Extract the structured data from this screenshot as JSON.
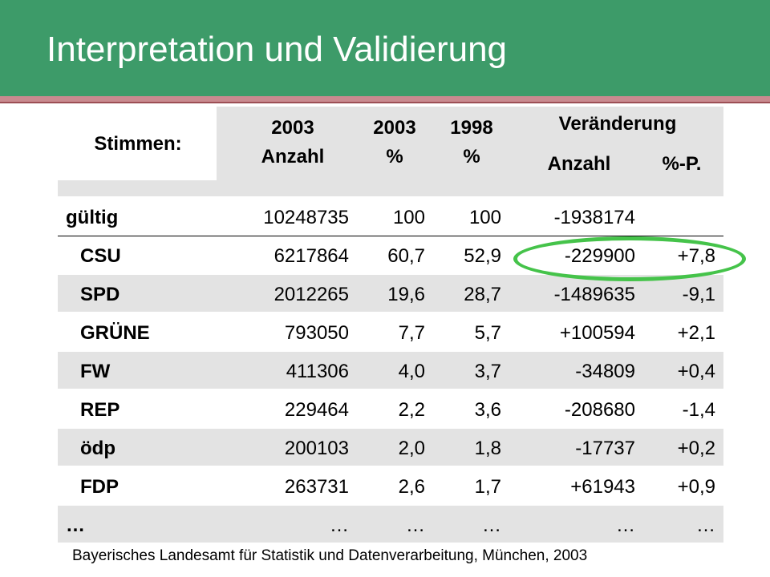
{
  "title": "Interpretation und Validierung",
  "colors": {
    "title_bar": "#3d9b69",
    "stripe": "#e3e3e3",
    "highlight": "#45c34a"
  },
  "table": {
    "header": {
      "stimmen": "Stimmen:",
      "col_2003_anzahl": [
        "2003",
        "Anzahl"
      ],
      "col_2003_pct": [
        "2003",
        "%"
      ],
      "col_1998_pct": [
        "1998",
        "%"
      ],
      "veraenderung": "Veränderung",
      "veraenderung_anzahl": "Anzahl",
      "veraenderung_pp": "%-P."
    },
    "rows": [
      {
        "label": "gültig",
        "anzahl_2003": "10248735",
        "pct_2003": "100",
        "pct_1998": "100",
        "diff_anzahl": "-1938174",
        "diff_pp": ""
      },
      {
        "label": "CSU",
        "anzahl_2003": "6217864",
        "pct_2003": "60,7",
        "pct_1998": "52,9",
        "diff_anzahl": "-229900",
        "diff_pp": "+7,8"
      },
      {
        "label": "SPD",
        "anzahl_2003": "2012265",
        "pct_2003": "19,6",
        "pct_1998": "28,7",
        "diff_anzahl": "-1489635",
        "diff_pp": "-9,1"
      },
      {
        "label": "GRÜNE",
        "anzahl_2003": "793050",
        "pct_2003": "7,7",
        "pct_1998": "5,7",
        "diff_anzahl": "+100594",
        "diff_pp": "+2,1"
      },
      {
        "label": "FW",
        "anzahl_2003": "411306",
        "pct_2003": "4,0",
        "pct_1998": "3,7",
        "diff_anzahl": "-34809",
        "diff_pp": "+0,4"
      },
      {
        "label": "REP",
        "anzahl_2003": "229464",
        "pct_2003": "2,2",
        "pct_1998": "3,6",
        "diff_anzahl": "-208680",
        "diff_pp": "-1,4"
      },
      {
        "label": "ödp",
        "anzahl_2003": "200103",
        "pct_2003": "2,0",
        "pct_1998": "1,8",
        "diff_anzahl": "-17737",
        "diff_pp": "+0,2"
      },
      {
        "label": "FDP",
        "anzahl_2003": "263731",
        "pct_2003": "2,6",
        "pct_1998": "1,7",
        "diff_anzahl": "+61943",
        "diff_pp": "+0,9"
      },
      {
        "label": "…",
        "anzahl_2003": "…",
        "pct_2003": "…",
        "pct_1998": "…",
        "diff_anzahl": "…",
        "diff_pp": "…"
      }
    ]
  },
  "source": "Bayerisches Landesamt für Statistik und Datenverarbeitung, München, 2003"
}
